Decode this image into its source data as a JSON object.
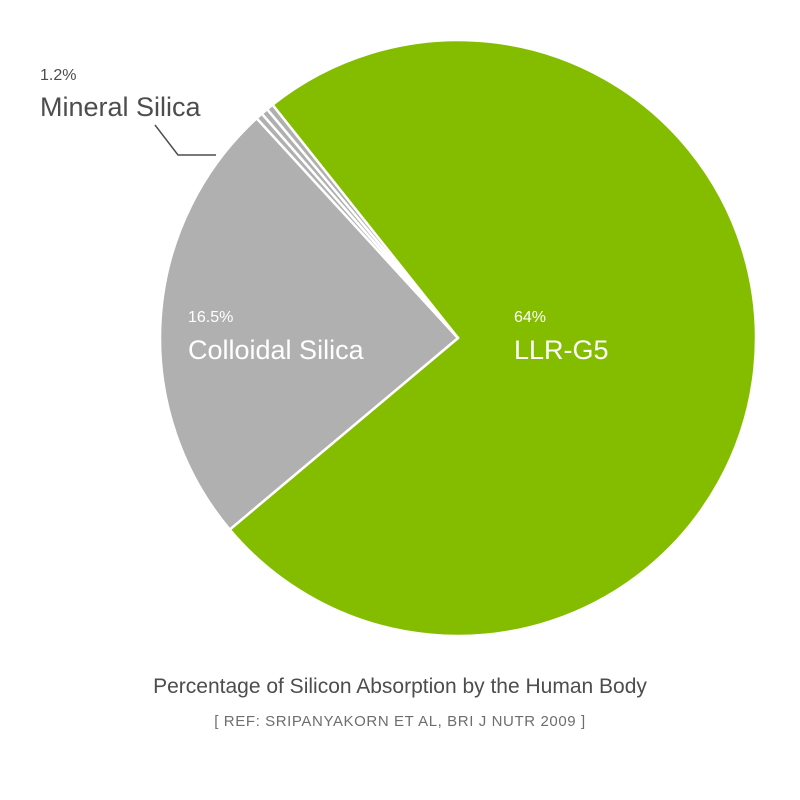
{
  "chart_data": {
    "type": "pie",
    "title": "Percentage of Silicon Absorption by the Human Body",
    "source": "[ REF: SRIPANYAKORN ET AL, BRI J NUTR 2009 ]",
    "slices": [
      {
        "name": "LLR-G5",
        "label": "64%",
        "value": 64,
        "color": "#84bd00",
        "text_color": "#ffffff"
      },
      {
        "name": "Colloidal Silica",
        "label": "16.5%",
        "value": 16.5,
        "color": "#b1b0b1",
        "text_color": "#ffffff"
      },
      {
        "name": "Mineral Silica",
        "label": "1.2%",
        "value": 1.2,
        "color": "#b1b0b1",
        "text_color": "#4d4d4f"
      }
    ]
  }
}
